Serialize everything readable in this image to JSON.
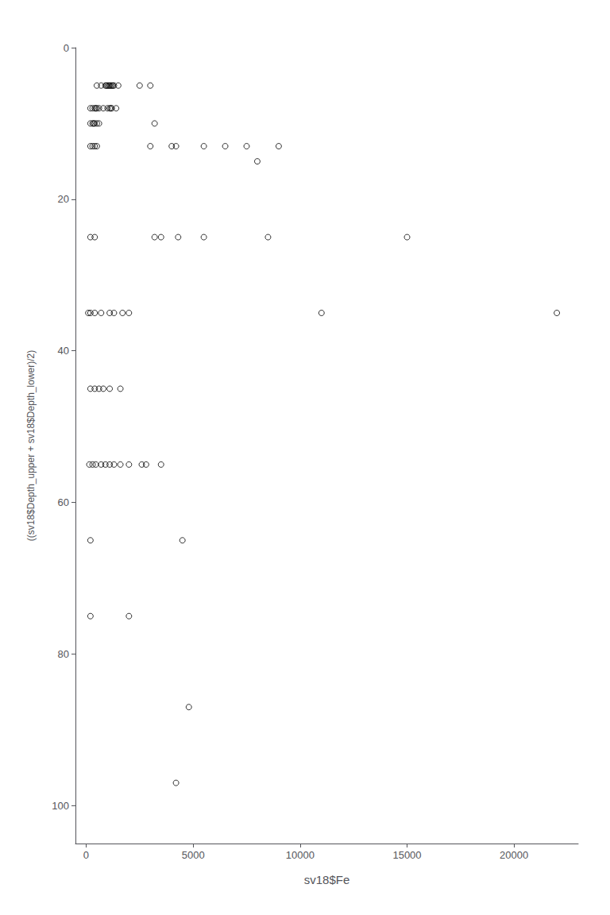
{
  "chart_data": {
    "type": "scatter",
    "x": [
      500,
      700,
      900,
      950,
      1000,
      1050,
      1100,
      1150,
      1200,
      1250,
      1300,
      1500,
      2500,
      3000,
      200,
      300,
      400,
      450,
      500,
      600,
      800,
      1000,
      1100,
      1150,
      1200,
      1400,
      200,
      300,
      350,
      400,
      500,
      600,
      3200,
      200,
      300,
      400,
      500,
      3000,
      4000,
      4200,
      5500,
      6500,
      7500,
      9000,
      8000,
      200,
      400,
      3200,
      3500,
      4300,
      5500,
      8500,
      15000,
      100,
      200,
      400,
      700,
      1100,
      1300,
      1700,
      2000,
      11000,
      22000,
      200,
      400,
      600,
      800,
      1100,
      1600,
      150,
      300,
      450,
      700,
      900,
      1100,
      1300,
      1600,
      2000,
      2600,
      2800,
      3500,
      200,
      4500,
      200,
      2000,
      4800,
      4200
    ],
    "values": [
      5,
      5,
      5,
      5,
      5,
      5,
      5,
      5,
      5,
      5,
      5,
      5,
      5,
      5,
      8,
      8,
      8,
      8,
      8,
      8,
      8,
      8,
      8,
      8,
      8,
      8,
      10,
      10,
      10,
      10,
      10,
      10,
      10,
      13,
      13,
      13,
      13,
      13,
      13,
      13,
      13,
      13,
      13,
      13,
      15,
      25,
      25,
      25,
      25,
      25,
      25,
      25,
      25,
      35,
      35,
      35,
      35,
      35,
      35,
      35,
      35,
      35,
      35,
      45,
      45,
      45,
      45,
      45,
      45,
      55,
      55,
      55,
      55,
      55,
      55,
      55,
      55,
      55,
      55,
      55,
      55,
      65,
      65,
      75,
      75,
      87,
      97
    ],
    "xlabel": "sv18$Fe",
    "ylabel": "((sv18$Depth_upper + sv18$Depth_lower)/2)",
    "xlim": [
      -500,
      23000
    ],
    "ylim": [
      105,
      0
    ],
    "xticks": [
      0,
      5000,
      10000,
      15000,
      20000
    ],
    "yticks": [
      0,
      20,
      40,
      60,
      80,
      100
    ],
    "color": "black",
    "marker": "circle",
    "grid": false
  }
}
